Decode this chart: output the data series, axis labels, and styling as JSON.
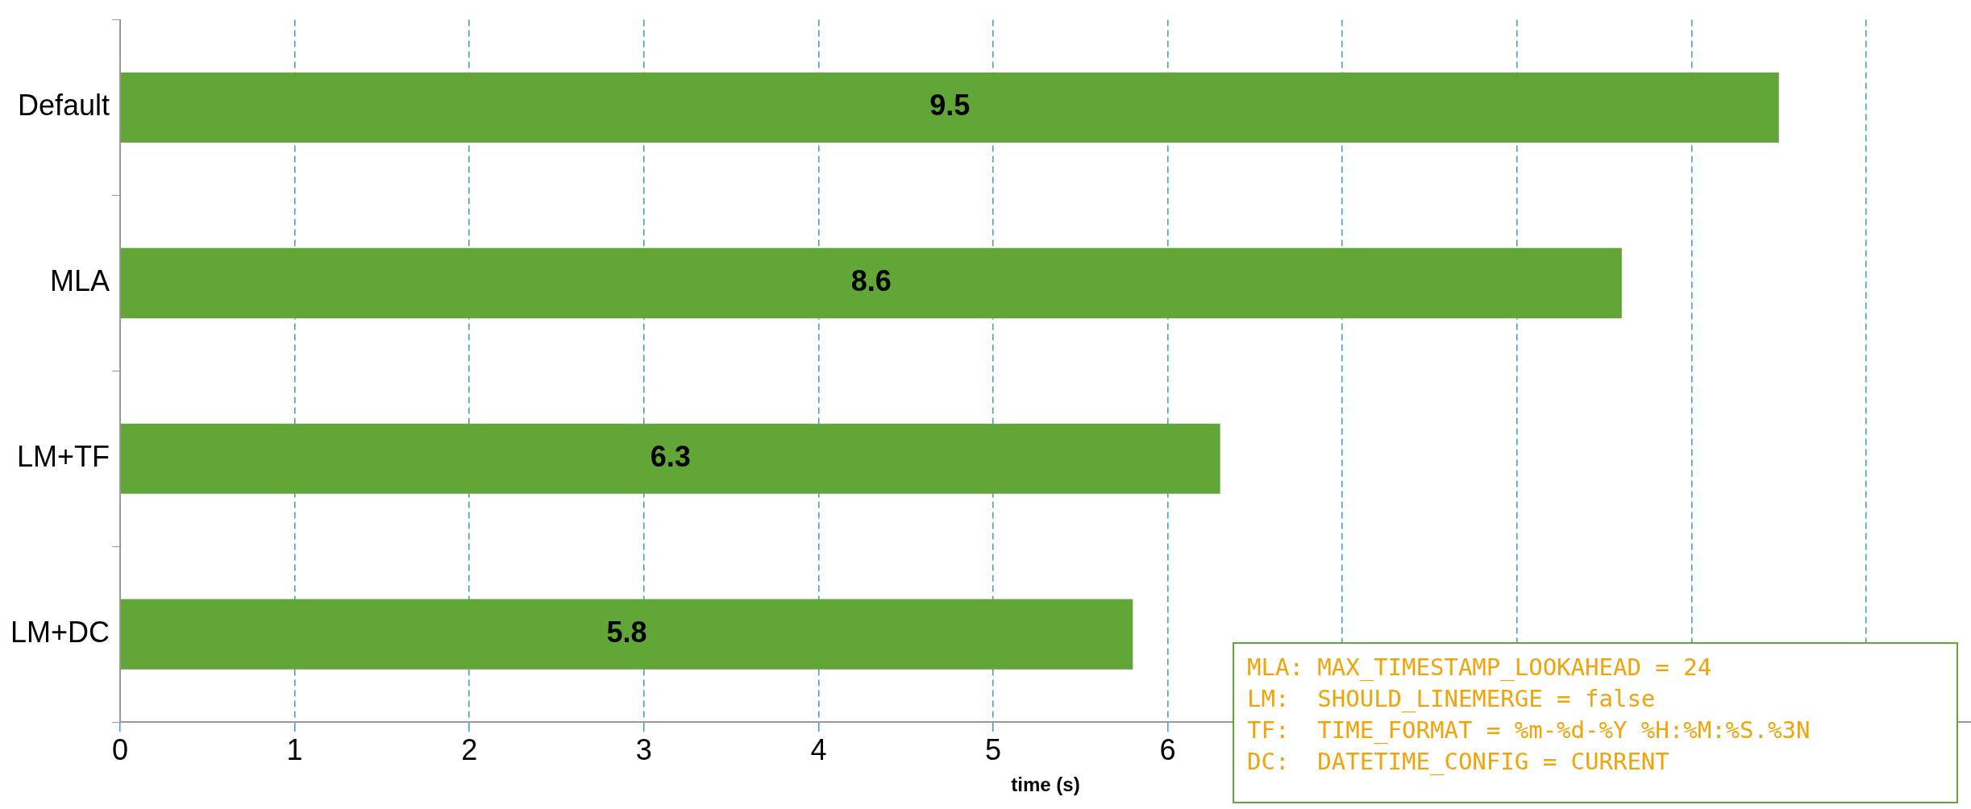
{
  "chart_data": {
    "type": "bar",
    "orientation": "horizontal",
    "xlabel": "time (s)",
    "categories": [
      "Default",
      "MLA",
      "LM+TF",
      "LM+DC"
    ],
    "values": [
      9.5,
      8.6,
      6.3,
      5.8
    ],
    "color": "#62a637",
    "data_labels": true,
    "xlim": [
      0,
      10.6
    ],
    "xticks": [
      0,
      1,
      2,
      3,
      4,
      5,
      6,
      {
        "value": 7,
        "label": null
      },
      {
        "value": 8,
        "label": null
      },
      {
        "value": 9,
        "label": null
      },
      {
        "value": 10,
        "label": null
      }
    ],
    "grid": "x",
    "legend": false,
    "annotations": [
      "MLA: MAX_TIMESTAMP_LOOKAHEAD = 24",
      "LM:  SHOULD_LINEMERGE = false",
      "TF:  TIME_FORMAT = %m-%d-%Y %H:%M:%S.%3N",
      "DC:  DATETIME_CONFIG = CURRENT"
    ]
  }
}
